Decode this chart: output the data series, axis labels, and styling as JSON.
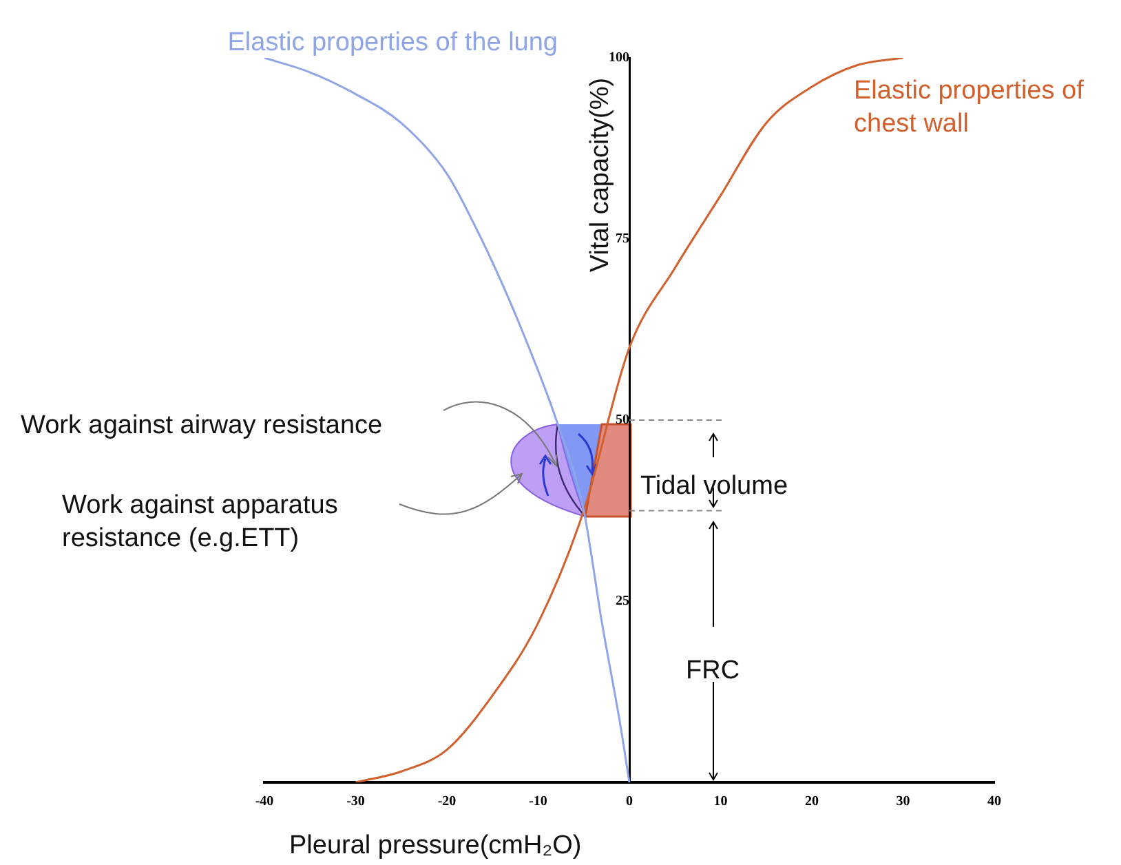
{
  "chart_data": {
    "type": "line",
    "xlabel": "Pleural pressure(cmH₂O)",
    "ylabel": "Vital capacity(%)",
    "xlim": [
      -40,
      40
    ],
    "xticks": [
      -40,
      -30,
      -20,
      -10,
      0,
      10,
      20,
      30,
      40
    ],
    "ylim": [
      0,
      100
    ],
    "yticks": [
      25,
      50,
      75,
      100
    ],
    "grid": false,
    "legend": false,
    "marker": "none",
    "line_style": "solid",
    "series": [
      {
        "name": "Elastic properties of the lung",
        "color": "#8fa5e6",
        "x": [
          -40,
          -35,
          -30,
          -25,
          -20,
          -17,
          -14,
          -11,
          -8,
          -5,
          -3,
          -1,
          0
        ],
        "values": [
          100,
          98,
          95,
          91,
          84,
          77,
          69,
          60,
          50,
          37.5,
          22,
          8,
          0
        ]
      },
      {
        "name": "Elastic properties of chest wall",
        "color": "#d0602e",
        "x": [
          -30,
          -25,
          -20,
          -15,
          -10,
          -5,
          0,
          5,
          10,
          15,
          20,
          25,
          30
        ],
        "values": [
          0,
          1.5,
          4.5,
          12,
          22,
          37.5,
          60,
          71,
          81,
          91,
          96,
          99,
          100
        ]
      }
    ],
    "ref_lines": [
      {
        "axis": "y",
        "value": 50,
        "color": "#888888",
        "line_style": "dashed"
      },
      {
        "axis": "y",
        "value": 37.5,
        "color": "#888888",
        "line_style": "dashed"
      }
    ],
    "annotations": [
      "Work against airway resistance",
      "Work against apparatus resistance (e.g.ETT)",
      "Tidal volume",
      "FRC"
    ]
  }
}
